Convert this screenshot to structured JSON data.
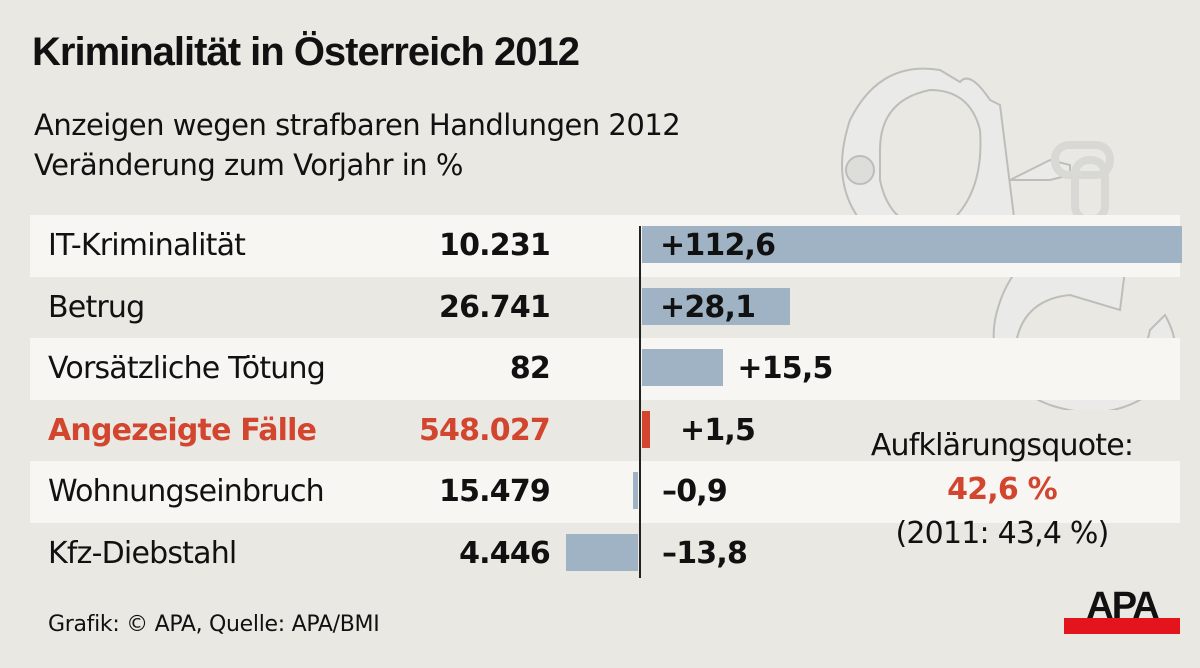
{
  "title": "Kriminalität in Österreich 2012",
  "subtitle_1": "Anzeigen wegen strafbaren Handlungen 2012",
  "subtitle_2": "Veränderung zum Vorjahr in %",
  "chart_data": {
    "type": "bar",
    "orientation": "horizontal",
    "categories": [
      "IT-Kriminalität",
      "Betrug",
      "Vorsätzliche Tötung",
      "Angezeigte Fälle",
      "Wohnungseinbruch",
      "Kfz-Diebstahl"
    ],
    "counts": [
      "10.231",
      "26.741",
      "82",
      "548.027",
      "15.479",
      "4.446"
    ],
    "values": [
      112.6,
      28.1,
      15.5,
      1.5,
      -0.9,
      -13.8
    ],
    "value_labels": [
      "+112,6",
      "+28,1",
      "+15,5",
      "+1,5",
      "–0,9",
      "–13,8"
    ],
    "highlight_index": 3,
    "colors": {
      "bar": "#9fb3c5",
      "highlight": "#d2452e"
    }
  },
  "aufklaerung": {
    "label": "Aufklärungsquote:",
    "value": "42,6 %",
    "previous": "(2011: 43,4 %)"
  },
  "source": "Grafik: © APA, Quelle: APA/BMI",
  "logo": "APA"
}
